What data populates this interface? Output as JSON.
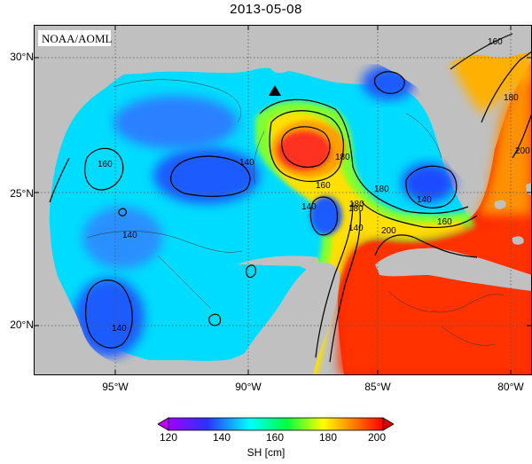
{
  "title": "2013-05-08",
  "credit": "NOAA/AOML",
  "lat_labels": [
    "30°N",
    "25°N",
    "20°N"
  ],
  "lon_labels": [
    "95°W",
    "90°W",
    "85°W",
    "80°W"
  ],
  "contour_labels": [
    "160",
    "140",
    "140",
    "180",
    "180",
    "160",
    "180",
    "180",
    "200",
    "140",
    "140",
    "180",
    "200",
    "160",
    "160",
    "140",
    "140"
  ],
  "colorbar": {
    "label": "SH [cm]",
    "ticks": [
      "120",
      "140",
      "160",
      "180",
      "200"
    ],
    "colors": [
      "#a000ff",
      "#2a32ff",
      "#00ffff",
      "#00ff40",
      "#ffff00",
      "#ff8000",
      "#ff0000"
    ]
  },
  "colors": {
    "land": "#c0c0c0",
    "eddy_core": "#ff3020",
    "loop_current": "#ff2000",
    "gulf_basin": "#00e5ff",
    "low_sh": "#1a5cff"
  },
  "marker": "filled-triangle"
}
